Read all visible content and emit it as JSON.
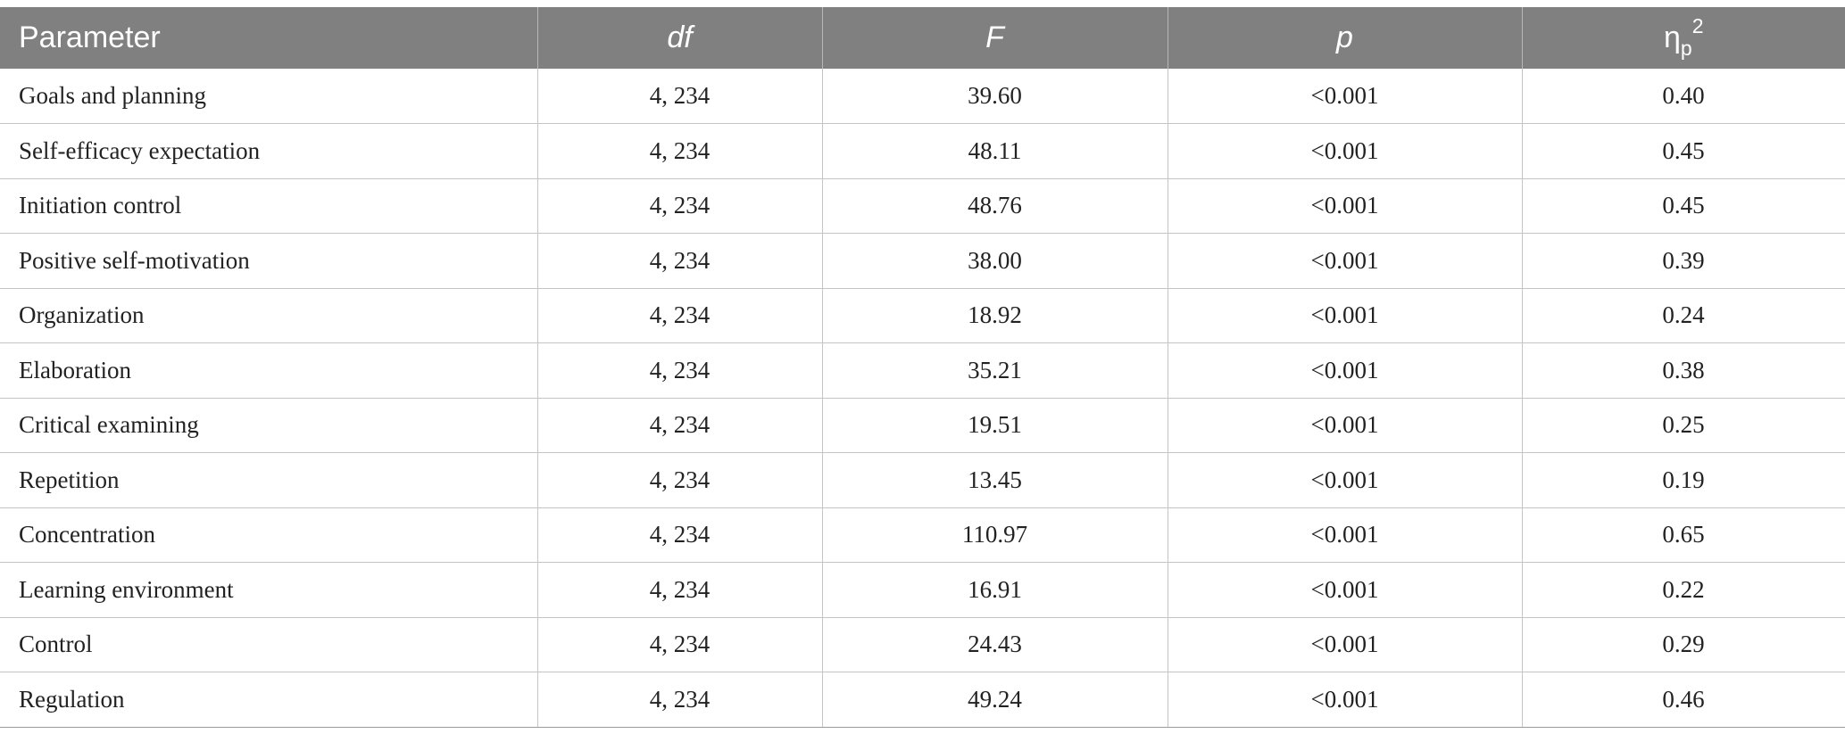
{
  "table": {
    "headers": {
      "parameter": "Parameter",
      "df": "df",
      "f": "F",
      "p": "p",
      "eta_base": "η",
      "eta_sub": "p",
      "eta_sup": "2"
    },
    "rows": [
      {
        "parameter": "Goals and planning",
        "df": "4, 234",
        "f": "39.60",
        "p": "<0.001",
        "eta": "0.40"
      },
      {
        "parameter": "Self-efficacy expectation",
        "df": "4, 234",
        "f": "48.11",
        "p": "<0.001",
        "eta": "0.45"
      },
      {
        "parameter": "Initiation control",
        "df": "4, 234",
        "f": "48.76",
        "p": "<0.001",
        "eta": "0.45"
      },
      {
        "parameter": "Positive self-motivation",
        "df": "4, 234",
        "f": "38.00",
        "p": "<0.001",
        "eta": "0.39"
      },
      {
        "parameter": "Organization",
        "df": "4, 234",
        "f": "18.92",
        "p": "<0.001",
        "eta": "0.24"
      },
      {
        "parameter": "Elaboration",
        "df": "4, 234",
        "f": "35.21",
        "p": "<0.001",
        "eta": "0.38"
      },
      {
        "parameter": "Critical examining",
        "df": "4, 234",
        "f": "19.51",
        "p": "<0.001",
        "eta": "0.25"
      },
      {
        "parameter": "Repetition",
        "df": "4, 234",
        "f": "13.45",
        "p": "<0.001",
        "eta": "0.19"
      },
      {
        "parameter": "Concentration",
        "df": "4, 234",
        "f": "110.97",
        "p": "<0.001",
        "eta": "0.65"
      },
      {
        "parameter": "Learning environment",
        "df": "4, 234",
        "f": "16.91",
        "p": "<0.001",
        "eta": "0.22"
      },
      {
        "parameter": "Control",
        "df": "4, 234",
        "f": "24.43",
        "p": "<0.001",
        "eta": "0.29"
      },
      {
        "parameter": "Regulation",
        "df": "4, 234",
        "f": "49.24",
        "p": "<0.001",
        "eta": "0.46"
      }
    ]
  },
  "colors": {
    "header_bg": "#808080",
    "header_text": "#ffffff",
    "grid_line": "#c4c4c4"
  }
}
